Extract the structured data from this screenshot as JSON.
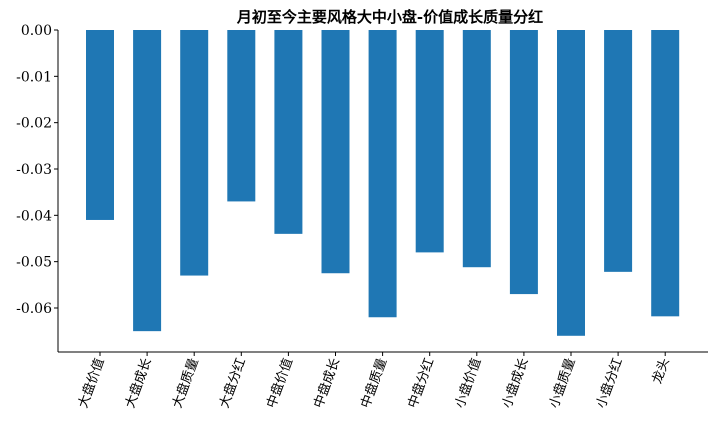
{
  "chart_data": {
    "type": "bar",
    "title": "月初至今主要风格大中小盘-价值成长质量分红",
    "categories": [
      "大盘价值",
      "大盘成长",
      "大盘质量",
      "大盘分红",
      "中盘价值",
      "中盘成长",
      "中盘质量",
      "中盘分红",
      "小盘价值",
      "小盘成长",
      "小盘质量",
      "小盘分红",
      "龙头"
    ],
    "values": [
      -0.041,
      -0.065,
      -0.053,
      -0.037,
      -0.044,
      -0.0525,
      -0.062,
      -0.048,
      -0.0512,
      -0.057,
      -0.066,
      -0.0522,
      -0.0618
    ],
    "ylim": [
      -0.0695,
      0.0
    ],
    "yticks": [
      0.0,
      -0.01,
      -0.02,
      -0.03,
      -0.04,
      -0.05,
      -0.06
    ],
    "ytick_labels": [
      "0.00",
      "-0.01",
      "-0.02",
      "-0.03",
      "-0.04",
      "-0.05",
      "-0.06"
    ],
    "bar_color": "#1f77b4",
    "grid": false,
    "legend": "none"
  }
}
